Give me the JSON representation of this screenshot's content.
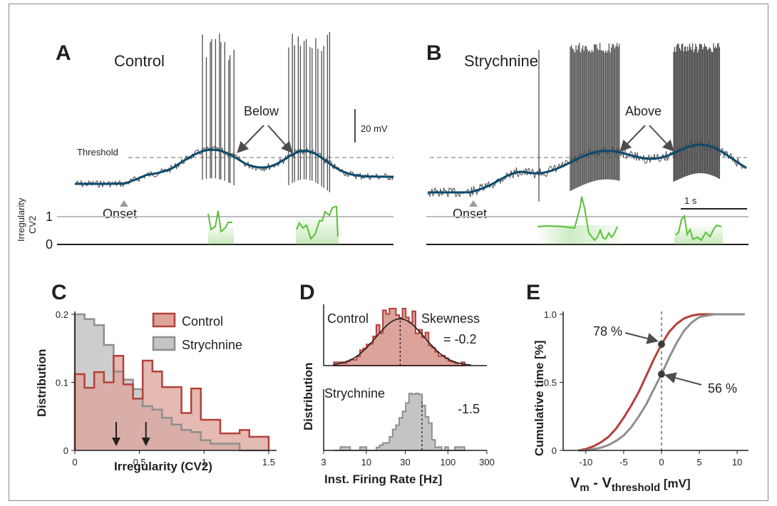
{
  "panels": {
    "a": {
      "letter": "A",
      "condition": "Control",
      "threshold_label": "Threshold",
      "onset_label": "Onset",
      "annotation": "Below",
      "scale_label": "20 mV",
      "cv2_axis_label": "Irregularity",
      "cv2_axis_sublabel": "CV2",
      "cv2_ticks": [
        "1",
        "0"
      ]
    },
    "b": {
      "letter": "B",
      "condition": "Strychnine",
      "onset_label": "Onset",
      "annotation": "Above",
      "time_scale_label": "1 s"
    },
    "c": {
      "letter": "C"
    },
    "d": {
      "letter": "D"
    },
    "e": {
      "letter": "E"
    }
  },
  "colors": {
    "control": "#b5403a",
    "control_fill": "#dba39a",
    "strychnine": "#8f8f8f",
    "strychnine_fill": "#c4c4c6",
    "trace": "#4d4d4d",
    "smooth_trace": "#0b4a6e",
    "smooth_trace_b": "#29a8e0",
    "cv2": "#5cbf3b",
    "guide": "#bdbdbd"
  },
  "chart_data": [
    {
      "id": "C",
      "type": "histogram",
      "xlabel": "Irregularity (CV2)",
      "ylabel": "Distribution",
      "xlim": [
        0,
        1.55
      ],
      "ylim": [
        0,
        0.2
      ],
      "x_ticks": [
        "0",
        "0.5",
        "1",
        "1.5"
      ],
      "y_ticks": [
        "0",
        "0.1",
        "0.2"
      ],
      "bin_edges": [
        0,
        0.075,
        0.15,
        0.225,
        0.3,
        0.375,
        0.45,
        0.525,
        0.6,
        0.675,
        0.75,
        0.825,
        0.9,
        0.975,
        1.05,
        1.125,
        1.2,
        1.275,
        1.35,
        1.425,
        1.5
      ],
      "series": [
        {
          "name": "Control",
          "values": [
            0.112,
            0.092,
            0.115,
            0.1,
            0.139,
            0.097,
            0.076,
            0.132,
            0.116,
            0.093,
            0.093,
            0.055,
            0.091,
            0.045,
            0.045,
            0.025,
            0.025,
            0.03,
            0.02,
            0.02
          ]
        },
        {
          "name": "Strychnine",
          "values": [
            0.2,
            0.193,
            0.184,
            0.155,
            0.116,
            0.104,
            0.09,
            0.065,
            0.06,
            0.048,
            0.038,
            0.03,
            0.027,
            0.015,
            0.01,
            0.01,
            0.01,
            0.0,
            0.0,
            0.0
          ]
        }
      ],
      "legend": [
        "Control",
        "Strychnine"
      ],
      "median_arrows": [
        0.32,
        0.55
      ]
    },
    {
      "id": "D",
      "type": "histogram",
      "xlabel": "Inst. Firing Rate [Hz]",
      "ylabel": "Distribution",
      "x_scale": "log",
      "xlim": [
        3,
        300
      ],
      "x_ticks": [
        "3",
        "10",
        "30",
        "100",
        "300"
      ],
      "series": [
        {
          "name": "Control",
          "skewness_label": "Skewness",
          "skewness": "= -0.2",
          "median_hz": 26
        },
        {
          "name": "Strychnine",
          "skewness": "-1.5",
          "median_hz": 48
        }
      ]
    },
    {
      "id": "E",
      "type": "line",
      "xlabel_main": "V",
      "xlabel_sub1": "m",
      "xlabel_mid": " - V",
      "xlabel_sub2": "threshold",
      "xlabel_unit": " [mV]",
      "ylabel": "Cumulative time [%]",
      "xlim": [
        -13,
        11.5
      ],
      "ylim": [
        0,
        1
      ],
      "x_ticks": [
        "-10",
        "-5",
        "0",
        "5",
        "10"
      ],
      "y_ticks": [
        "0",
        "0.5",
        "1.0"
      ],
      "series": [
        {
          "name": "Control",
          "x": [
            -11,
            -10,
            -9,
            -8,
            -7,
            -6,
            -5,
            -4,
            -3,
            -2,
            -1,
            0,
            1,
            2,
            3,
            4,
            5,
            6,
            7,
            8,
            9,
            10,
            11
          ],
          "y": [
            0.0,
            0.01,
            0.03,
            0.06,
            0.1,
            0.16,
            0.24,
            0.33,
            0.43,
            0.55,
            0.67,
            0.78,
            0.87,
            0.93,
            0.97,
            0.99,
            1.0,
            1.0,
            1.0,
            1.0,
            1.0,
            1.0,
            1.0
          ]
        },
        {
          "name": "Strychnine",
          "x": [
            -11,
            -10,
            -9,
            -8,
            -7,
            -6,
            -5,
            -4,
            -3,
            -2,
            -1,
            0,
            1,
            2,
            3,
            4,
            5,
            6,
            7,
            8,
            9,
            10,
            11
          ],
          "y": [
            0.0,
            0.0,
            0.01,
            0.02,
            0.04,
            0.07,
            0.11,
            0.17,
            0.25,
            0.34,
            0.45,
            0.56,
            0.68,
            0.79,
            0.88,
            0.94,
            0.98,
            0.99,
            1.0,
            1.0,
            1.0,
            1.0,
            1.0
          ]
        }
      ],
      "markers": [
        {
          "x": 0,
          "y": 0.78,
          "label": "78 %"
        },
        {
          "x": 0,
          "y": 0.56,
          "label": "56 %"
        }
      ]
    }
  ]
}
